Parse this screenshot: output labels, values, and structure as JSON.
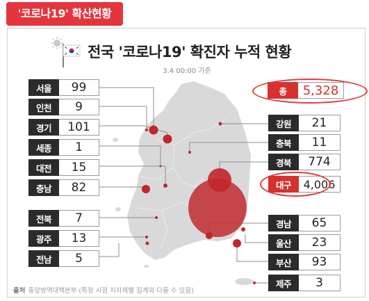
{
  "tag_label": "'코로나19' 확산현황",
  "title": "전국 '코로나19' 확진자 누적 현황",
  "timestamp": "3.4 00:00 기준",
  "total": {
    "label": "총",
    "value": "5,328"
  },
  "regions_left": [
    {
      "name": "서울",
      "value": "99"
    },
    {
      "name": "인천",
      "value": "9"
    },
    {
      "name": "경기",
      "value": "101"
    },
    {
      "name": "세종",
      "value": "1"
    },
    {
      "name": "대전",
      "value": "15"
    },
    {
      "name": "충남",
      "value": "82"
    },
    {
      "name": "전북",
      "value": "7"
    },
    {
      "name": "광주",
      "value": "13"
    },
    {
      "name": "전남",
      "value": "5"
    }
  ],
  "regions_right": [
    {
      "name": "강원",
      "value": "21"
    },
    {
      "name": "충북",
      "value": "11"
    },
    {
      "name": "경북",
      "value": "774"
    },
    {
      "name": "대구",
      "value": "4,006"
    },
    {
      "name": "경남",
      "value": "65"
    },
    {
      "name": "울산",
      "value": "23"
    },
    {
      "name": "부산",
      "value": "93"
    },
    {
      "name": "제주",
      "value": "3"
    }
  ],
  "footer": {
    "label": "출처",
    "text": "중앙방역대책본부 (특정 시점 지자체별 집계와 다를 수 있음)"
  },
  "colors": {
    "accent": "#e4353d",
    "bubble": "#c0262b",
    "map": "#d9d9d9",
    "label_bg": "#2b2b2b"
  },
  "icons": [
    "virus-icon",
    "korean-flag-icon"
  ]
}
